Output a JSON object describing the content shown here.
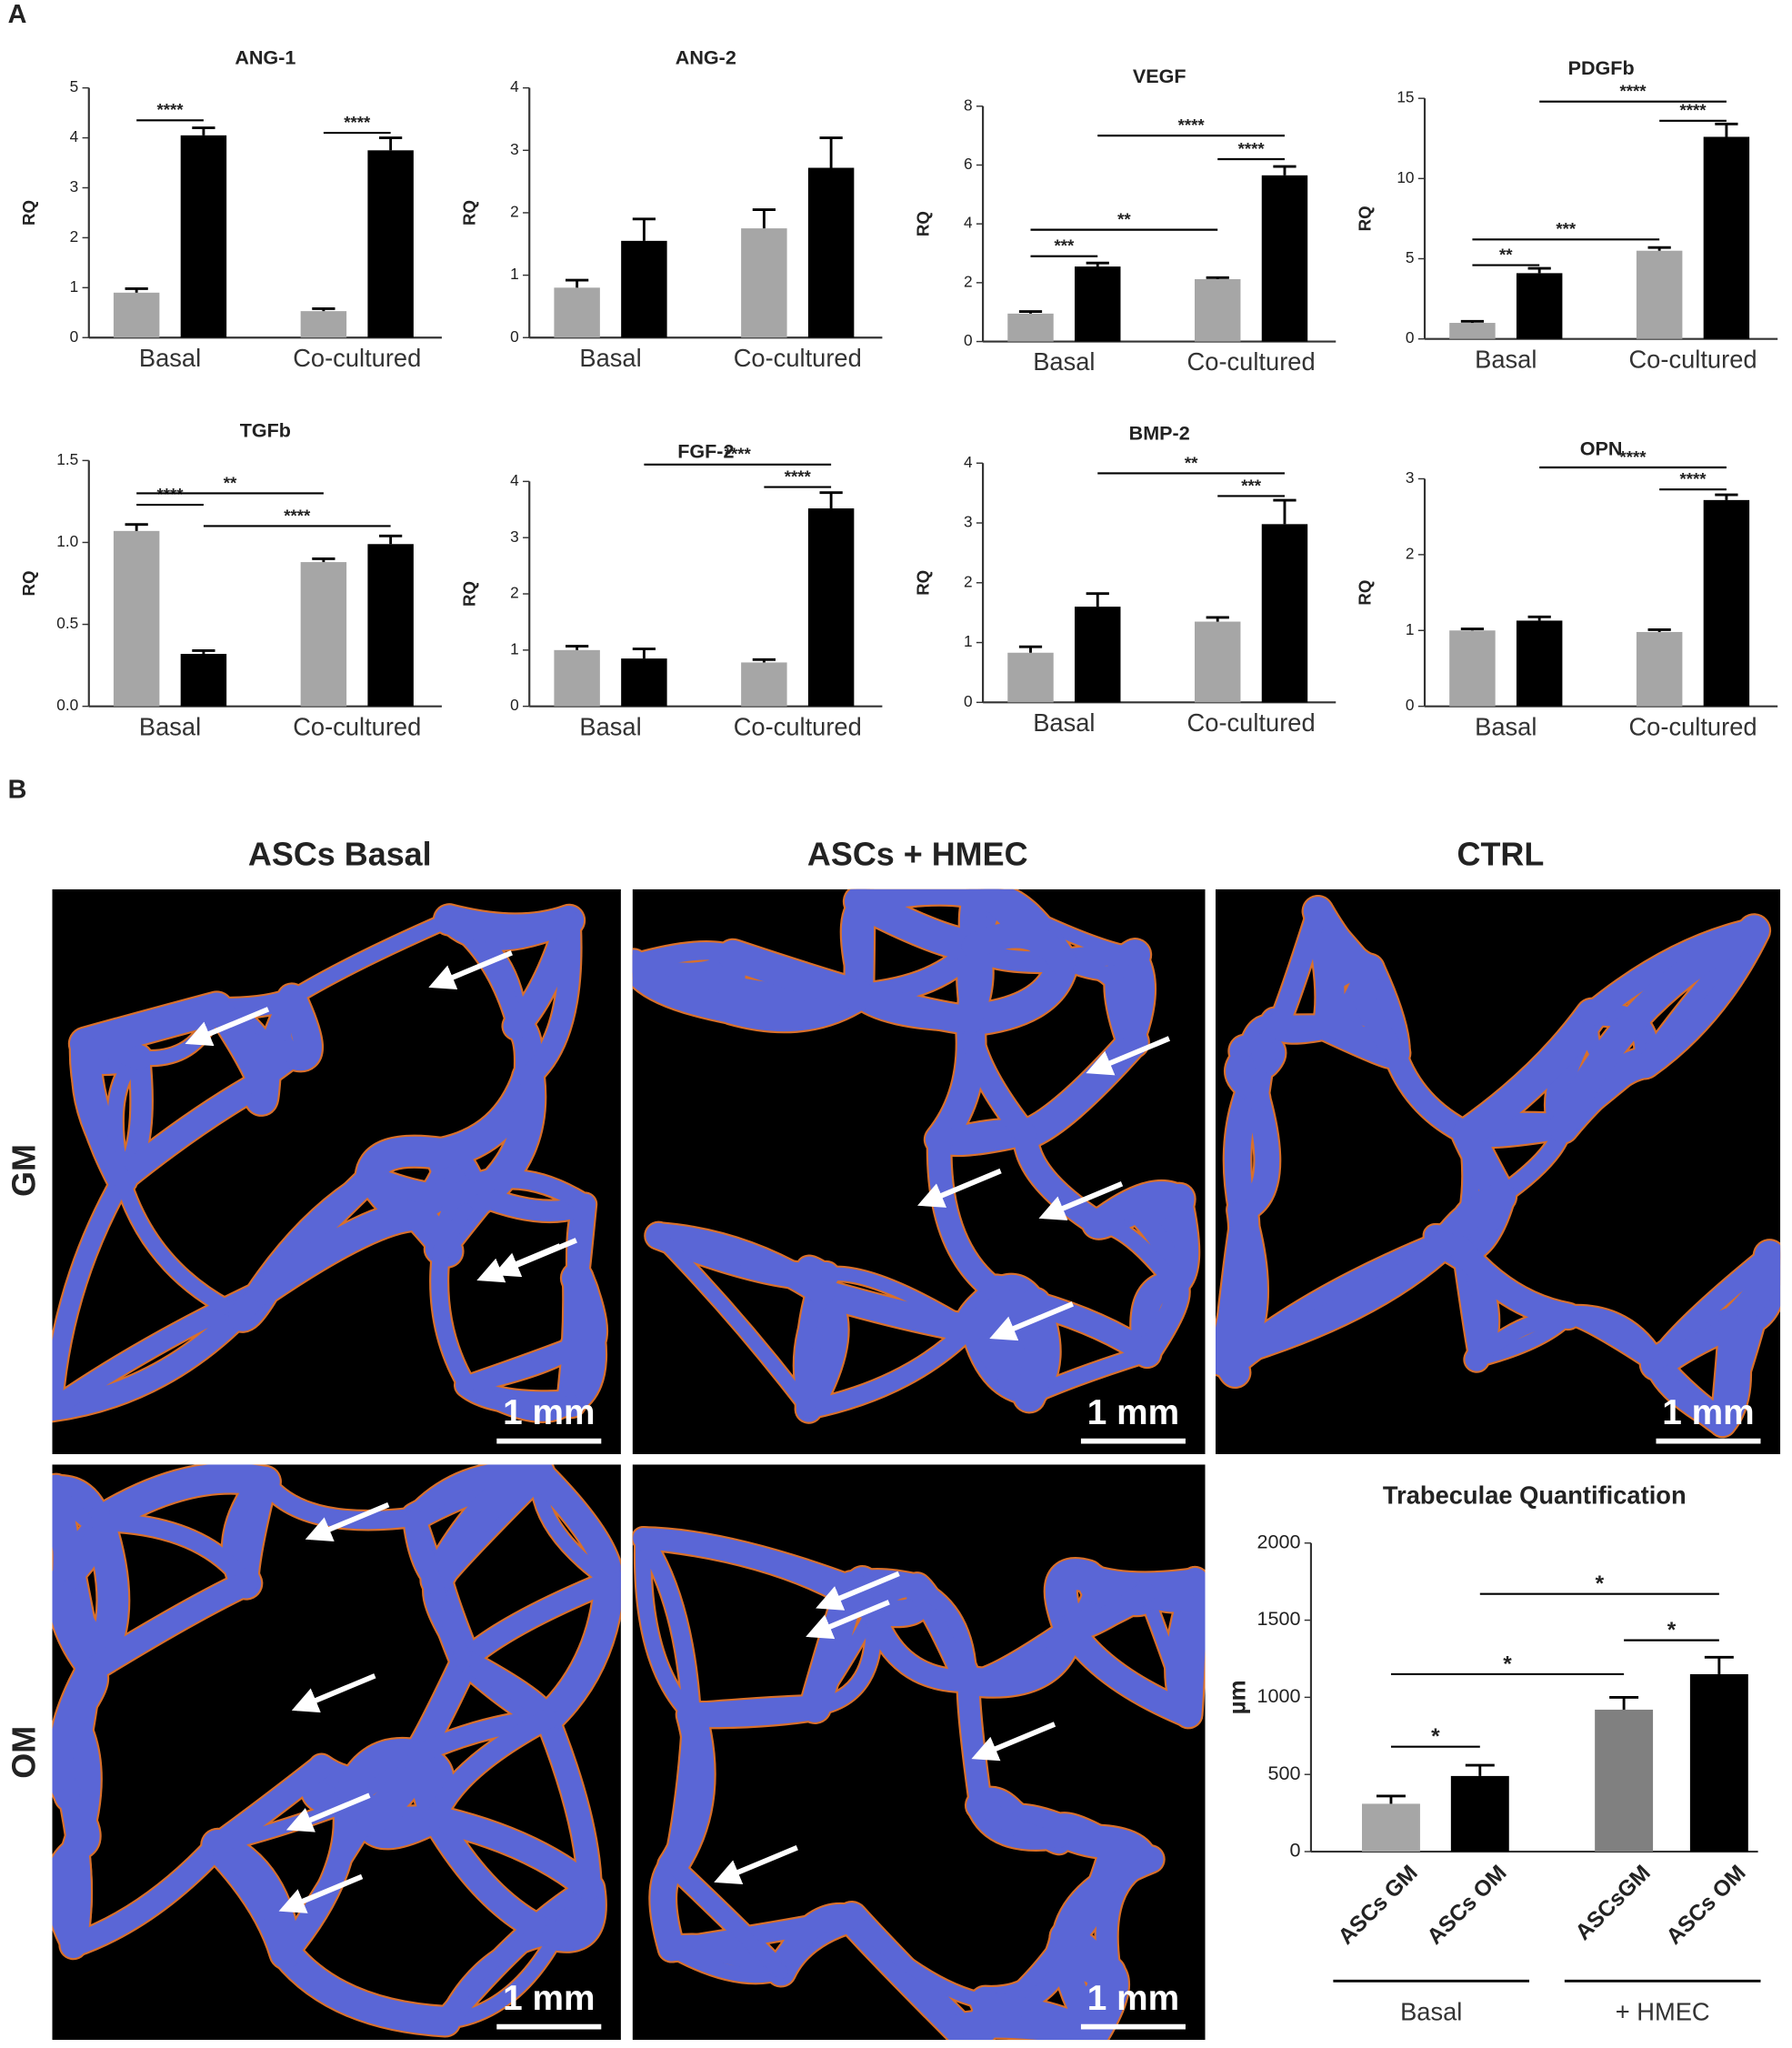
{
  "figure": {
    "panel_a": "A",
    "panel_b": "B",
    "columns": [
      "ASCs Basal",
      "ASCs + HMEC",
      "CTRL"
    ],
    "rows": [
      "GM",
      "OM"
    ],
    "scale_bar": "1 mm"
  },
  "chart_data": [
    {
      "type": "bar",
      "title": "ANG-1",
      "y_label": "RQ",
      "categories": [
        "Basal",
        "Co-cultured"
      ],
      "ylim": [
        0,
        5
      ],
      "yticks": [
        0,
        1,
        2,
        3,
        4,
        5
      ],
      "series": [
        {
          "color": "#a6a6a6",
          "values": [
            0.9,
            0.53
          ],
          "errors": [
            0.08,
            0.05
          ]
        },
        {
          "color": "#000000",
          "values": [
            4.05,
            3.75
          ],
          "errors": [
            0.15,
            0.25
          ]
        }
      ],
      "annotations": [
        "****",
        "****"
      ]
    },
    {
      "type": "bar",
      "title": "ANG-2",
      "y_label": "RQ",
      "categories": [
        "Basal",
        "Co-cultured"
      ],
      "ylim": [
        0,
        4
      ],
      "yticks": [
        0,
        1,
        2,
        3,
        4
      ],
      "series": [
        {
          "color": "#a6a6a6",
          "values": [
            0.8,
            1.75
          ],
          "errors": [
            0.12,
            0.3
          ]
        },
        {
          "color": "#000000",
          "values": [
            1.55,
            2.72
          ],
          "errors": [
            0.35,
            0.48
          ]
        }
      ],
      "annotations": []
    },
    {
      "type": "bar",
      "title": "VEGF",
      "y_label": "RQ",
      "categories": [
        "Basal",
        "Co-cultured"
      ],
      "ylim": [
        0,
        8
      ],
      "yticks": [
        0,
        2,
        4,
        6,
        8
      ],
      "series": [
        {
          "color": "#a6a6a6",
          "values": [
            0.95,
            2.12
          ],
          "errors": [
            0.07,
            0.05
          ]
        },
        {
          "color": "#000000",
          "values": [
            2.55,
            5.65
          ],
          "errors": [
            0.12,
            0.3
          ]
        }
      ],
      "annotations": [
        "***",
        "**",
        "****",
        "****"
      ]
    },
    {
      "type": "bar",
      "title": "PDGFb",
      "y_label": "RQ",
      "categories": [
        "Basal",
        "Co-cultured"
      ],
      "ylim": [
        0,
        15
      ],
      "yticks": [
        0,
        5,
        10,
        15
      ],
      "series": [
        {
          "color": "#a6a6a6",
          "values": [
            1.0,
            5.5
          ],
          "errors": [
            0.1,
            0.2
          ]
        },
        {
          "color": "#000000",
          "values": [
            4.1,
            12.6
          ],
          "errors": [
            0.3,
            0.8
          ]
        }
      ],
      "annotations": [
        "**",
        "***",
        "****",
        "****"
      ]
    },
    {
      "type": "bar",
      "title": "TGFb",
      "y_label": "RQ",
      "categories": [
        "Basal",
        "Co-cultured"
      ],
      "ylim": [
        0,
        1.5
      ],
      "yticks": [
        {
          "value": 0,
          "label": "0.0"
        },
        {
          "value": 0.5,
          "label": "0.5"
        },
        {
          "value": 1,
          "label": "1.0"
        },
        {
          "value": 1.5,
          "label": "1.5"
        }
      ],
      "series": [
        {
          "color": "#a6a6a6",
          "values": [
            1.07,
            0.88
          ],
          "errors": [
            0.04,
            0.02
          ]
        },
        {
          "color": "#000000",
          "values": [
            0.32,
            0.99
          ],
          "errors": [
            0.02,
            0.05
          ]
        }
      ],
      "annotations": [
        "****",
        "**",
        "****"
      ]
    },
    {
      "type": "bar",
      "title": "FGF-2",
      "y_label": "RQ",
      "categories": [
        "Basal",
        "Co-cultured"
      ],
      "ylim": [
        0,
        4
      ],
      "yticks": [
        0,
        1,
        2,
        3,
        4
      ],
      "series": [
        {
          "color": "#a6a6a6",
          "values": [
            1.0,
            0.78
          ],
          "errors": [
            0.07,
            0.05
          ]
        },
        {
          "color": "#000000",
          "values": [
            0.85,
            3.52
          ],
          "errors": [
            0.17,
            0.28
          ]
        }
      ],
      "annotations": [
        "****",
        "****"
      ]
    },
    {
      "type": "bar",
      "title": "BMP-2",
      "y_label": "RQ",
      "categories": [
        "Basal",
        "Co-cultured"
      ],
      "ylim": [
        0,
        4
      ],
      "yticks": [
        0,
        1,
        2,
        3,
        4
      ],
      "series": [
        {
          "color": "#a6a6a6",
          "values": [
            0.83,
            1.35
          ],
          "errors": [
            0.1,
            0.07
          ]
        },
        {
          "color": "#000000",
          "values": [
            1.6,
            2.98
          ],
          "errors": [
            0.22,
            0.4
          ]
        }
      ],
      "annotations": [
        "***",
        "**"
      ]
    },
    {
      "type": "bar",
      "title": "OPN",
      "y_label": "RQ",
      "categories": [
        "Basal",
        "Co-cultured"
      ],
      "ylim": [
        0,
        3
      ],
      "yticks": [
        0,
        1,
        2,
        3
      ],
      "series": [
        {
          "color": "#a6a6a6",
          "values": [
            1.0,
            0.98
          ],
          "errors": [
            0.02,
            0.03
          ]
        },
        {
          "color": "#000000",
          "values": [
            1.13,
            2.72
          ],
          "errors": [
            0.05,
            0.07
          ]
        }
      ],
      "annotations": [
        "****",
        "****"
      ]
    },
    {
      "type": "single_bar",
      "title": "Trabeculae Quantification",
      "y_label": "µm",
      "categories": [
        "ASCs GM",
        "ASCs OM",
        "ASCsGM",
        "ASCs OM"
      ],
      "group_labels": [
        "Basal",
        "+ HMEC"
      ],
      "ylim": [
        0,
        2000
      ],
      "yticks": [
        0,
        500,
        1000,
        1500,
        2000
      ],
      "values": [
        310,
        490,
        920,
        1150
      ],
      "errors": [
        50,
        70,
        80,
        110
      ],
      "colors": [
        "#a6a6a6",
        "#000000",
        "#808080",
        "#000000"
      ],
      "annotations": [
        "*",
        "*",
        "*",
        "*"
      ]
    }
  ]
}
